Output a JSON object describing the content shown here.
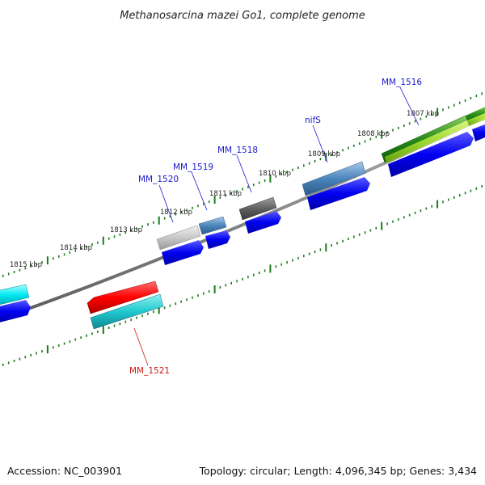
{
  "title": "Methanosarcina mazei Go1, complete genome",
  "footer": {
    "accession": "Accession: NC_003901",
    "summary": "Topology: circular; Length: 4,096,345 bp; Genes: 3,434"
  },
  "colors": {
    "backbone": "#808080",
    "tick": "#1a7a1a",
    "label_blue": "#1a1acc",
    "label_red": "#cc1a1a",
    "cds": "#1010ee"
  },
  "tick_labels": [
    "1815 kbp",
    "1814 kbp",
    "1813 kbp",
    "1812 kbp",
    "1811 kbp",
    "1810 kbp",
    "1809 kbp",
    "1808 kbp",
    "1807 kbp"
  ],
  "gene_labels": [
    "MM_1520",
    "MM_1519",
    "MM_1518",
    "nifS",
    "MM_1516",
    "MM_1521"
  ]
}
